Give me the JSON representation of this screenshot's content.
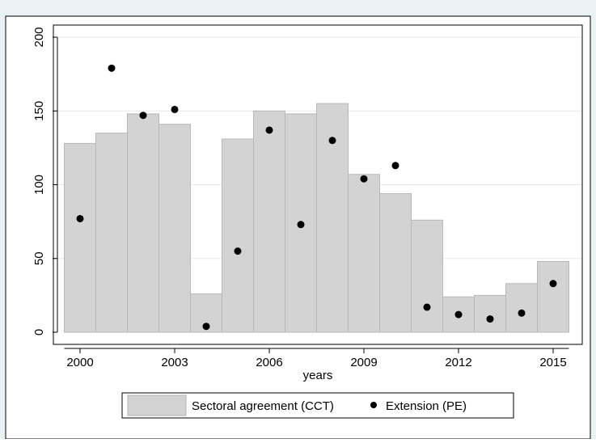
{
  "chart_data": {
    "type": "bar",
    "title": "",
    "xlabel": "years",
    "ylabel": "",
    "xlim": [
      1999.5,
      2015.5
    ],
    "ylim": [
      0,
      200
    ],
    "x": [
      2000,
      2001,
      2002,
      2003,
      2004,
      2005,
      2006,
      2007,
      2008,
      2009,
      2010,
      2011,
      2012,
      2013,
      2014,
      2015
    ],
    "xticks": [
      2000,
      2003,
      2006,
      2009,
      2012,
      2015
    ],
    "yticks": [
      0,
      50,
      100,
      150,
      200
    ],
    "grid": true,
    "legend_position": "bottom",
    "series": [
      {
        "name": "Sectoral agreement (CCT)",
        "type": "bar",
        "color": "#d3d3d3",
        "values": [
          128,
          135,
          148,
          141,
          26,
          131,
          150,
          148,
          155,
          107,
          94,
          76,
          24,
          25,
          33,
          48
        ]
      },
      {
        "name": "Extension (PE)",
        "type": "scatter",
        "color": "#000000",
        "values": [
          77,
          179,
          147,
          151,
          4,
          55,
          137,
          73,
          130,
          104,
          113,
          17,
          12,
          9,
          13,
          33
        ]
      }
    ]
  }
}
